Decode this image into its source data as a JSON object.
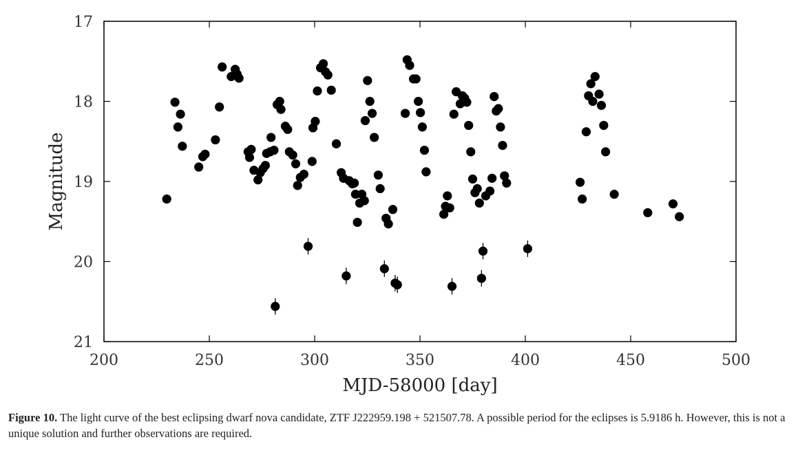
{
  "chart_data": {
    "type": "scatter",
    "xlabel": "MJD-58000 [day]",
    "ylabel": "Magnitude",
    "xlim": [
      200,
      500
    ],
    "ylim": [
      21,
      17
    ],
    "y_inverted": true,
    "xticks": [
      200,
      250,
      300,
      350,
      400,
      450,
      500
    ],
    "yticks": [
      17,
      18,
      19,
      20,
      21
    ],
    "grid": false,
    "marker_color": "#000000",
    "series": [
      {
        "points": [
          [
            229.8,
            19.22
          ],
          [
            233.7,
            18.01
          ],
          [
            235.1,
            18.32
          ],
          [
            236.3,
            18.16
          ],
          [
            237.2,
            18.56
          ],
          [
            245.0,
            18.82
          ],
          [
            246.9,
            18.69
          ],
          [
            248.0,
            18.66
          ],
          [
            252.9,
            18.48
          ],
          [
            254.8,
            18.07
          ],
          [
            256.1,
            17.57
          ],
          [
            260.4,
            17.69
          ],
          [
            262.3,
            17.6
          ],
          [
            263.2,
            17.66
          ],
          [
            264.1,
            17.71
          ],
          [
            268.4,
            18.63
          ],
          [
            269.1,
            18.7
          ],
          [
            269.9,
            18.6
          ],
          [
            271.2,
            18.86
          ],
          [
            273.1,
            18.98
          ],
          [
            274.2,
            18.89
          ],
          [
            275.5,
            18.84
          ],
          [
            276.6,
            18.8
          ],
          [
            277.2,
            18.65
          ],
          [
            278.9,
            18.63
          ],
          [
            279.3,
            18.45
          ],
          [
            280.7,
            18.61
          ],
          [
            281.3,
            20.56
          ],
          [
            282.2,
            18.04
          ],
          [
            283.4,
            18.0
          ],
          [
            284.0,
            18.1
          ],
          [
            286.1,
            18.31
          ],
          [
            287.2,
            18.35
          ],
          [
            288.0,
            18.63
          ],
          [
            289.6,
            18.67
          ],
          [
            291.0,
            18.78
          ],
          [
            291.9,
            19.05
          ],
          [
            293.2,
            18.95
          ],
          [
            294.9,
            18.91
          ],
          [
            296.9,
            19.81
          ],
          [
            298.8,
            18.75
          ],
          [
            299.2,
            18.33
          ],
          [
            300.3,
            18.25
          ],
          [
            301.3,
            17.87
          ],
          [
            302.8,
            17.58
          ],
          [
            304.1,
            17.53
          ],
          [
            305.1,
            17.63
          ],
          [
            306.3,
            17.67
          ],
          [
            307.9,
            17.86
          ],
          [
            310.3,
            18.53
          ],
          [
            312.6,
            18.89
          ],
          [
            313.7,
            18.96
          ],
          [
            315.0,
            20.18
          ],
          [
            316.4,
            18.99
          ],
          [
            317.9,
            19.03
          ],
          [
            318.8,
            19.02
          ],
          [
            319.4,
            19.16
          ],
          [
            320.3,
            19.51
          ],
          [
            321.4,
            19.27
          ],
          [
            322.4,
            19.16
          ],
          [
            323.6,
            19.24
          ],
          [
            324.0,
            18.24
          ],
          [
            325.1,
            17.74
          ],
          [
            326.2,
            18.0
          ],
          [
            327.3,
            18.15
          ],
          [
            328.3,
            18.45
          ],
          [
            330.2,
            18.92
          ],
          [
            331.1,
            19.09
          ],
          [
            333.1,
            20.09
          ],
          [
            333.9,
            19.46
          ],
          [
            335.0,
            19.53
          ],
          [
            337.1,
            19.35
          ],
          [
            338.2,
            20.27
          ],
          [
            339.3,
            20.29
          ],
          [
            343.0,
            18.15
          ],
          [
            343.9,
            17.48
          ],
          [
            345.1,
            17.55
          ],
          [
            346.9,
            17.72
          ],
          [
            348.1,
            17.72
          ],
          [
            349.2,
            18.0
          ],
          [
            350.2,
            18.14
          ],
          [
            351.1,
            18.32
          ],
          [
            352.1,
            18.61
          ],
          [
            352.9,
            18.88
          ],
          [
            361.3,
            19.41
          ],
          [
            362.1,
            19.31
          ],
          [
            363.0,
            19.18
          ],
          [
            364.1,
            19.33
          ],
          [
            365.2,
            20.31
          ],
          [
            366.1,
            18.16
          ],
          [
            367.2,
            17.88
          ],
          [
            369.1,
            18.03
          ],
          [
            370.1,
            17.93
          ],
          [
            371.2,
            17.96
          ],
          [
            372.2,
            18.01
          ],
          [
            373.1,
            18.3
          ],
          [
            374.1,
            18.63
          ],
          [
            375.0,
            18.97
          ],
          [
            376.1,
            19.14
          ],
          [
            377.2,
            19.09
          ],
          [
            378.2,
            19.27
          ],
          [
            379.2,
            20.21
          ],
          [
            379.9,
            19.87
          ],
          [
            381.2,
            19.18
          ],
          [
            383.2,
            19.12
          ],
          [
            384.2,
            18.96
          ],
          [
            385.2,
            17.94
          ],
          [
            386.2,
            18.12
          ],
          [
            387.2,
            18.09
          ],
          [
            388.2,
            18.32
          ],
          [
            389.2,
            18.55
          ],
          [
            390.1,
            18.93
          ],
          [
            391.1,
            19.02
          ],
          [
            401.1,
            19.84
          ],
          [
            426.0,
            19.01
          ],
          [
            427.0,
            19.22
          ],
          [
            428.9,
            18.38
          ],
          [
            430.0,
            17.93
          ],
          [
            431.1,
            17.78
          ],
          [
            432.0,
            18.0
          ],
          [
            433.1,
            17.69
          ],
          [
            435.0,
            17.91
          ],
          [
            436.1,
            18.05
          ],
          [
            437.2,
            18.3
          ],
          [
            438.1,
            18.63
          ],
          [
            442.2,
            19.16
          ],
          [
            458.1,
            19.39
          ],
          [
            470.1,
            19.28
          ],
          [
            473.1,
            19.44
          ]
        ]
      }
    ]
  },
  "caption": {
    "label": "Figure 10.",
    "text": "The light curve of the best eclipsing dwarf nova candidate, ZTF J222959.198 + 521507.78. A possible period for the eclipses is 5.9186 h. However, this is not a unique solution and further observations are required."
  }
}
